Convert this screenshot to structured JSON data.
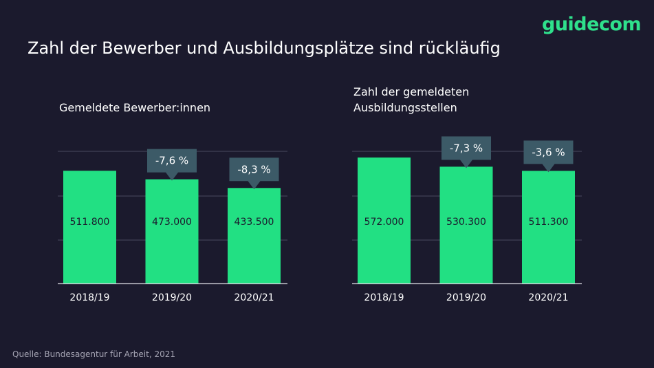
{
  "brand": {
    "logo_text": "guidecom",
    "accent_color": "#2fe08c"
  },
  "title": "Zahl der Bewerber und Ausbildungsplätze sind rückläufig",
  "source": "Quelle: Bundesagentur für Arbeit, 2021",
  "chart_data": [
    {
      "type": "bar",
      "title": "Gemeldete Bewerber:innen",
      "categories": [
        "2018/19",
        "2019/20",
        "2020/21"
      ],
      "values": [
        511800,
        473000,
        433500
      ],
      "value_labels": [
        "511.800",
        "473.000",
        "433.500"
      ],
      "change_labels": [
        "",
        "-7,6 %",
        "-8,3 %"
      ],
      "ylim": [
        0,
        600000
      ],
      "grid": true,
      "bar_color": "#22e083"
    },
    {
      "type": "bar",
      "title": "Zahl der gemeldeten Ausbildungsstellen",
      "categories": [
        "2018/19",
        "2019/20",
        "2020/21"
      ],
      "values": [
        572000,
        530300,
        511300
      ],
      "value_labels": [
        "572.000",
        "530.300",
        "511.300"
      ],
      "change_labels": [
        "",
        "-7,3 %",
        "-3,6 %"
      ],
      "ylim": [
        0,
        600000
      ],
      "grid": true,
      "bar_color": "#22e083"
    }
  ]
}
